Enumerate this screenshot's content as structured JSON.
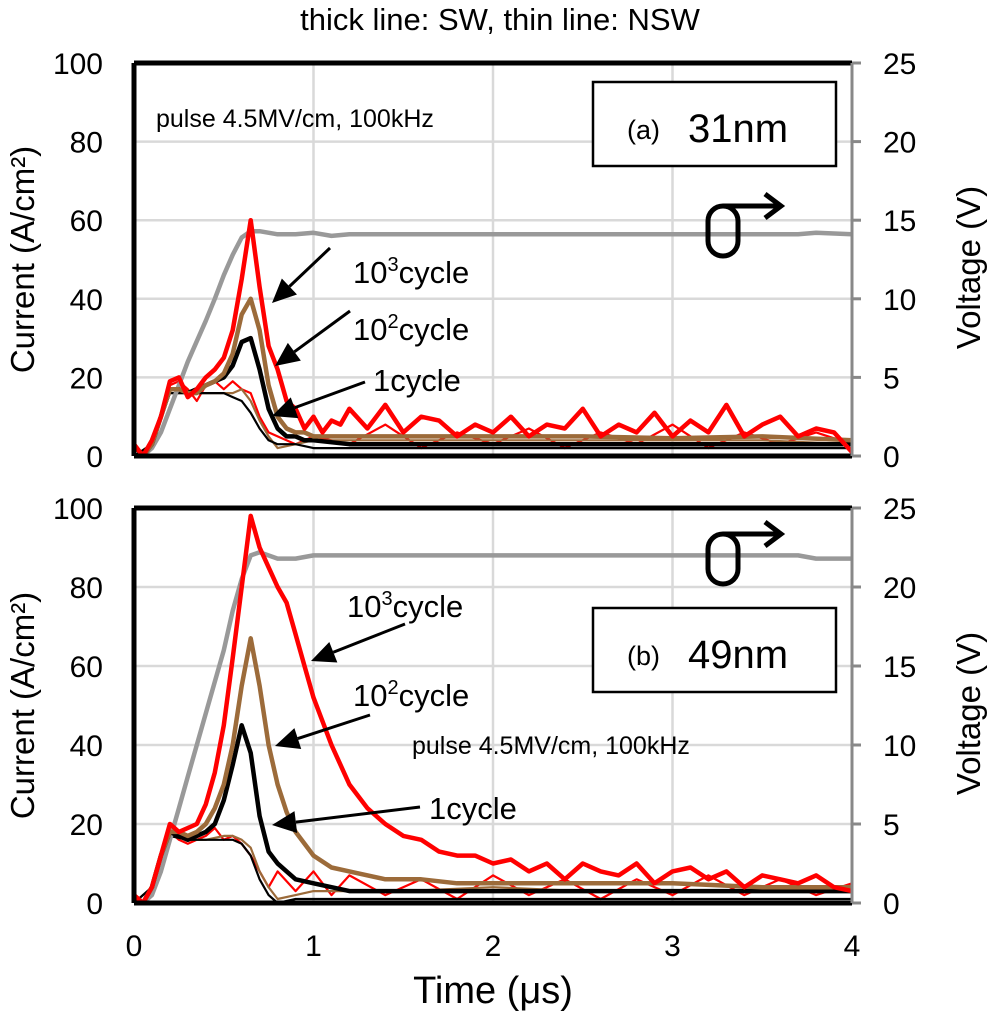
{
  "figure_title": "thick line: SW, thin line: NSW",
  "colors": {
    "cycle_1e3": "#ff0000",
    "cycle_1e2": "#9c6b3a",
    "cycle_1e2_label": "#6b3a0a",
    "cycle_1": "#000000",
    "voltage": "#999999",
    "grid": "#d9d9d9",
    "axis": "#000000",
    "right_axis": "#888888"
  },
  "chart_data": [
    {
      "panel": "a",
      "type": "line",
      "title": "(a)",
      "thickness_label": "31nm",
      "annotation": "pulse 4.5MV/cm, 100kHz",
      "xlabel": "Time (μs)",
      "ylabel": "Current (A/cm²)",
      "y2label": "Voltage (V)",
      "xlim": [
        0,
        4
      ],
      "ylim": [
        0,
        100
      ],
      "y2lim": [
        0,
        25
      ],
      "xticks": [
        "0",
        "1",
        "2",
        "3",
        "4"
      ],
      "yticks": [
        "0",
        "20",
        "40",
        "60",
        "80",
        "100"
      ],
      "y2ticks": [
        "0",
        "5",
        "10",
        "15",
        "20",
        "25"
      ],
      "grid": true,
      "series_labels": [
        {
          "key": "cycle_1e3",
          "base": "10",
          "sup": "3",
          "suffix": "cycle"
        },
        {
          "key": "cycle_1e2",
          "base": "10",
          "sup": "2",
          "suffix": "cycle"
        },
        {
          "key": "cycle_1",
          "base": "1",
          "sup": "",
          "suffix": "cycle"
        }
      ],
      "voltage_symbol": "σ→",
      "series": [
        {
          "name": "Voltage",
          "axis": "y2",
          "style": "thick",
          "x": [
            0,
            0.05,
            0.1,
            0.15,
            0.2,
            0.25,
            0.3,
            0.35,
            0.4,
            0.45,
            0.5,
            0.55,
            0.6,
            0.65,
            0.7,
            0.8,
            0.9,
            1.0,
            1.1,
            1.2,
            1.5,
            2.0,
            2.5,
            3.0,
            3.5,
            3.7,
            3.8,
            4.0
          ],
          "y": [
            0,
            0,
            0.5,
            1.5,
            3.0,
            4.5,
            6.0,
            7.3,
            8.6,
            10.0,
            11.5,
            12.8,
            13.9,
            14.3,
            14.3,
            14.1,
            14.1,
            14.2,
            14.0,
            14.1,
            14.1,
            14.1,
            14.1,
            14.1,
            14.1,
            14.1,
            14.2,
            14.1
          ]
        },
        {
          "name": "10^3 cycle SW",
          "axis": "y",
          "style": "thick",
          "color_key": "cycle_1e3",
          "x": [
            0,
            0.05,
            0.1,
            0.15,
            0.2,
            0.25,
            0.3,
            0.35,
            0.4,
            0.45,
            0.5,
            0.55,
            0.6,
            0.65,
            0.7,
            0.75,
            0.8,
            0.85,
            0.9,
            0.95,
            1.0,
            1.05,
            1.1,
            1.15,
            1.2,
            1.3,
            1.4,
            1.5,
            1.6,
            1.7,
            1.8,
            1.9,
            2.0,
            2.1,
            2.2,
            2.3,
            2.4,
            2.5,
            2.6,
            2.7,
            2.8,
            2.9,
            3.0,
            3.1,
            3.2,
            3.3,
            3.4,
            3.5,
            3.6,
            3.7,
            3.8,
            3.9,
            4.0
          ],
          "y": [
            3,
            0,
            4,
            10,
            19,
            20,
            15,
            17,
            20,
            22,
            25,
            32,
            45,
            60,
            43,
            28,
            22,
            14,
            12,
            7,
            10,
            6,
            9,
            8,
            12,
            7,
            13,
            6,
            10,
            9,
            5,
            8,
            6,
            10,
            5,
            8,
            7,
            12,
            5,
            8,
            6,
            11,
            5,
            9,
            6,
            13,
            5,
            8,
            10,
            5,
            7,
            6,
            1
          ]
        },
        {
          "name": "10^2 cycle SW",
          "axis": "y",
          "style": "thick",
          "color_key": "cycle_1e2",
          "x": [
            0,
            0.05,
            0.1,
            0.15,
            0.2,
            0.25,
            0.3,
            0.35,
            0.4,
            0.45,
            0.5,
            0.55,
            0.6,
            0.65,
            0.7,
            0.75,
            0.8,
            0.85,
            0.9,
            0.95,
            1.0,
            1.2,
            1.5,
            2.0,
            2.5,
            3.0,
            3.5,
            4.0
          ],
          "y": [
            0,
            0,
            3,
            10,
            17,
            17,
            16,
            16,
            18,
            19,
            21,
            26,
            36,
            40,
            32,
            18,
            10,
            7,
            6,
            6,
            5,
            5,
            5,
            5,
            5,
            4.5,
            5,
            4
          ]
        },
        {
          "name": "1 cycle SW",
          "axis": "y",
          "style": "thick",
          "color_key": "cycle_1",
          "x": [
            0,
            0.05,
            0.1,
            0.15,
            0.2,
            0.25,
            0.3,
            0.35,
            0.4,
            0.45,
            0.5,
            0.55,
            0.6,
            0.65,
            0.7,
            0.75,
            0.8,
            0.85,
            0.9,
            0.95,
            1.0,
            1.2,
            1.5,
            2.0,
            2.5,
            3.0,
            3.5,
            4.0
          ],
          "y": [
            0,
            0,
            3,
            10,
            17,
            17,
            16,
            17,
            18,
            19,
            20,
            23,
            29,
            30,
            22,
            12,
            7,
            5,
            5,
            4,
            4,
            3,
            3,
            3,
            3,
            3,
            3,
            3
          ]
        },
        {
          "name": "10^3 cycle NSW",
          "axis": "y",
          "style": "thin",
          "color_key": "cycle_1e3",
          "x": [
            0,
            0.05,
            0.1,
            0.15,
            0.2,
            0.25,
            0.3,
            0.35,
            0.4,
            0.45,
            0.5,
            0.55,
            0.6,
            0.65,
            0.7,
            0.75,
            0.8,
            0.9,
            1.0,
            1.2,
            1.4,
            1.6,
            1.8,
            2.0,
            2.2,
            2.4,
            2.6,
            2.8,
            3.0,
            3.2,
            3.4,
            3.6,
            3.8,
            4.0
          ],
          "y": [
            2,
            0,
            3,
            10,
            18,
            19,
            17,
            14,
            18,
            19,
            17,
            19,
            17,
            16,
            10,
            6,
            5,
            3,
            5,
            3,
            8,
            2,
            6,
            3,
            7,
            2,
            6,
            3,
            8,
            2,
            6,
            3,
            6,
            3
          ]
        },
        {
          "name": "10^2 cycle NSW",
          "axis": "y",
          "style": "thin",
          "color_key": "cycle_1e2",
          "x": [
            0,
            0.1,
            0.2,
            0.3,
            0.4,
            0.5,
            0.55,
            0.6,
            0.65,
            0.7,
            0.75,
            0.8,
            0.9,
            1.0,
            1.5,
            2.0,
            2.5,
            3.0,
            3.5,
            4.0
          ],
          "y": [
            0,
            3,
            16,
            16,
            16,
            16,
            16,
            17,
            14,
            9,
            5,
            2,
            3,
            4,
            4,
            4,
            4,
            4,
            4,
            3
          ]
        },
        {
          "name": "1 cycle NSW",
          "axis": "y",
          "style": "thin",
          "color_key": "cycle_1",
          "x": [
            0,
            0.1,
            0.2,
            0.3,
            0.4,
            0.5,
            0.55,
            0.6,
            0.65,
            0.7,
            0.75,
            0.8,
            0.9,
            1.0,
            1.5,
            2.0,
            2.5,
            3.0,
            3.5,
            4.0
          ],
          "y": [
            0,
            3,
            16,
            16,
            16,
            16,
            15,
            14,
            11,
            7,
            4,
            3,
            3,
            2,
            2,
            2,
            2,
            2,
            2,
            2
          ]
        }
      ]
    },
    {
      "panel": "b",
      "type": "line",
      "title": "(b)",
      "thickness_label": "49nm",
      "annotation": "pulse 4.5MV/cm, 100kHz",
      "xlabel": "Time (μs)",
      "ylabel": "Current (A/cm²)",
      "y2label": "Voltage (V)",
      "xlim": [
        0,
        4
      ],
      "ylim": [
        0,
        100
      ],
      "y2lim": [
        0,
        25
      ],
      "xticks": [
        "0",
        "1",
        "2",
        "3",
        "4"
      ],
      "yticks": [
        "0",
        "20",
        "40",
        "60",
        "80",
        "100"
      ],
      "y2ticks": [
        "0",
        "5",
        "10",
        "15",
        "20",
        "25"
      ],
      "grid": true,
      "series_labels": [
        {
          "key": "cycle_1e3",
          "base": "10",
          "sup": "3",
          "suffix": "cycle"
        },
        {
          "key": "cycle_1e2",
          "base": "10",
          "sup": "2",
          "suffix": "cycle"
        },
        {
          "key": "cycle_1",
          "base": "1",
          "sup": "",
          "suffix": "cycle"
        }
      ],
      "voltage_symbol": "σ→",
      "series": [
        {
          "name": "Voltage",
          "axis": "y2",
          "style": "thick",
          "x": [
            0,
            0.05,
            0.1,
            0.15,
            0.2,
            0.25,
            0.3,
            0.35,
            0.4,
            0.45,
            0.5,
            0.55,
            0.6,
            0.65,
            0.7,
            0.8,
            0.9,
            1.0,
            1.5,
            2.0,
            2.5,
            3.0,
            3.5,
            3.7,
            3.8,
            4.0
          ],
          "y": [
            0,
            0,
            0.5,
            2.0,
            4.0,
            6.0,
            8.0,
            10.0,
            12.0,
            14.0,
            16.0,
            18.5,
            20.5,
            22.0,
            22.2,
            21.8,
            21.8,
            22.0,
            22.0,
            22.0,
            22.0,
            22.0,
            22.0,
            22.0,
            21.8,
            21.8
          ]
        },
        {
          "name": "10^3 cycle SW",
          "axis": "y",
          "style": "thick",
          "color_key": "cycle_1e3",
          "x": [
            0,
            0.05,
            0.1,
            0.15,
            0.2,
            0.25,
            0.3,
            0.35,
            0.4,
            0.45,
            0.5,
            0.55,
            0.6,
            0.65,
            0.7,
            0.75,
            0.8,
            0.85,
            0.9,
            0.95,
            1.0,
            1.1,
            1.2,
            1.3,
            1.4,
            1.5,
            1.6,
            1.7,
            1.8,
            1.9,
            2.0,
            2.1,
            2.2,
            2.3,
            2.4,
            2.5,
            2.6,
            2.7,
            2.8,
            2.9,
            3.0,
            3.1,
            3.2,
            3.3,
            3.4,
            3.5,
            3.6,
            3.7,
            3.8,
            3.9,
            4.0
          ],
          "y": [
            2,
            0,
            4,
            12,
            20,
            18,
            19,
            20,
            25,
            33,
            45,
            62,
            80,
            98,
            90,
            85,
            80,
            76,
            68,
            60,
            52,
            40,
            30,
            24,
            20,
            17,
            16,
            13,
            12,
            12,
            10,
            11,
            8,
            10,
            6,
            10,
            8,
            7,
            10,
            5,
            8,
            9,
            6,
            8,
            4,
            7,
            6,
            5,
            7,
            4,
            3
          ]
        },
        {
          "name": "10^2 cycle SW",
          "axis": "y",
          "style": "thick",
          "color_key": "cycle_1e2",
          "x": [
            0,
            0.05,
            0.1,
            0.15,
            0.2,
            0.25,
            0.3,
            0.35,
            0.4,
            0.45,
            0.5,
            0.55,
            0.6,
            0.65,
            0.7,
            0.75,
            0.8,
            0.85,
            0.9,
            1.0,
            1.1,
            1.2,
            1.4,
            1.6,
            1.8,
            2.0,
            2.5,
            3.0,
            3.5,
            4.0
          ],
          "y": [
            0,
            0,
            4,
            12,
            18,
            18,
            17,
            18,
            20,
            24,
            30,
            40,
            55,
            67,
            55,
            40,
            30,
            23,
            18,
            12,
            9,
            8,
            6,
            6,
            5,
            5,
            5,
            5,
            4,
            4
          ]
        },
        {
          "name": "1 cycle SW",
          "axis": "y",
          "style": "thick",
          "color_key": "cycle_1",
          "x": [
            0,
            0.05,
            0.1,
            0.15,
            0.2,
            0.25,
            0.3,
            0.35,
            0.4,
            0.45,
            0.5,
            0.55,
            0.6,
            0.65,
            0.7,
            0.75,
            0.8,
            0.85,
            0.9,
            1.0,
            1.1,
            1.2,
            1.4,
            1.6,
            1.8,
            2.0,
            2.5,
            3.0,
            3.5,
            4.0
          ],
          "y": [
            0,
            0,
            4,
            12,
            18,
            17,
            16,
            17,
            18,
            20,
            26,
            35,
            45,
            38,
            22,
            13,
            10,
            8,
            6,
            5,
            4,
            3,
            3,
            3,
            3,
            3,
            3,
            3,
            3,
            3
          ]
        },
        {
          "name": "10^3 cycle NSW",
          "axis": "y",
          "style": "thin",
          "color_key": "cycle_1e3",
          "x": [
            0,
            0.05,
            0.1,
            0.15,
            0.2,
            0.25,
            0.3,
            0.35,
            0.4,
            0.45,
            0.5,
            0.55,
            0.6,
            0.65,
            0.7,
            0.75,
            0.8,
            0.9,
            1.0,
            1.1,
            1.2,
            1.4,
            1.6,
            1.8,
            2.0,
            2.2,
            2.4,
            2.6,
            2.8,
            3.0,
            3.2,
            3.4,
            3.6,
            3.8,
            4.0
          ],
          "y": [
            2,
            0,
            4,
            12,
            18,
            16,
            15,
            16,
            17,
            19,
            16,
            17,
            15,
            12,
            8,
            4,
            8,
            3,
            8,
            2,
            7,
            2,
            6,
            1,
            7,
            2,
            6,
            1,
            6,
            2,
            7,
            2,
            6,
            2,
            5
          ]
        },
        {
          "name": "10^2 cycle NSW",
          "axis": "y",
          "style": "thin",
          "color_key": "cycle_1e2",
          "x": [
            0,
            0.1,
            0.2,
            0.3,
            0.4,
            0.5,
            0.55,
            0.6,
            0.65,
            0.7,
            0.75,
            0.8,
            0.9,
            1.0,
            1.5,
            2.0,
            2.5,
            3.0,
            3.5,
            4.0
          ],
          "y": [
            0,
            4,
            17,
            16,
            16,
            17,
            17,
            16,
            14,
            8,
            4,
            1,
            2,
            3,
            3,
            4,
            3,
            3,
            3,
            3
          ]
        },
        {
          "name": "1 cycle NSW",
          "axis": "y",
          "style": "thin",
          "color_key": "cycle_1",
          "x": [
            0,
            0.1,
            0.2,
            0.3,
            0.4,
            0.5,
            0.55,
            0.6,
            0.65,
            0.7,
            0.75,
            0.8,
            0.9,
            1.0,
            1.5,
            2.0,
            2.5,
            3.0,
            3.5,
            4.0
          ],
          "y": [
            0,
            4,
            17,
            16,
            16,
            16,
            16,
            15,
            12,
            6,
            2,
            0,
            1,
            1,
            1,
            1,
            1,
            1,
            1,
            1
          ]
        }
      ]
    }
  ]
}
